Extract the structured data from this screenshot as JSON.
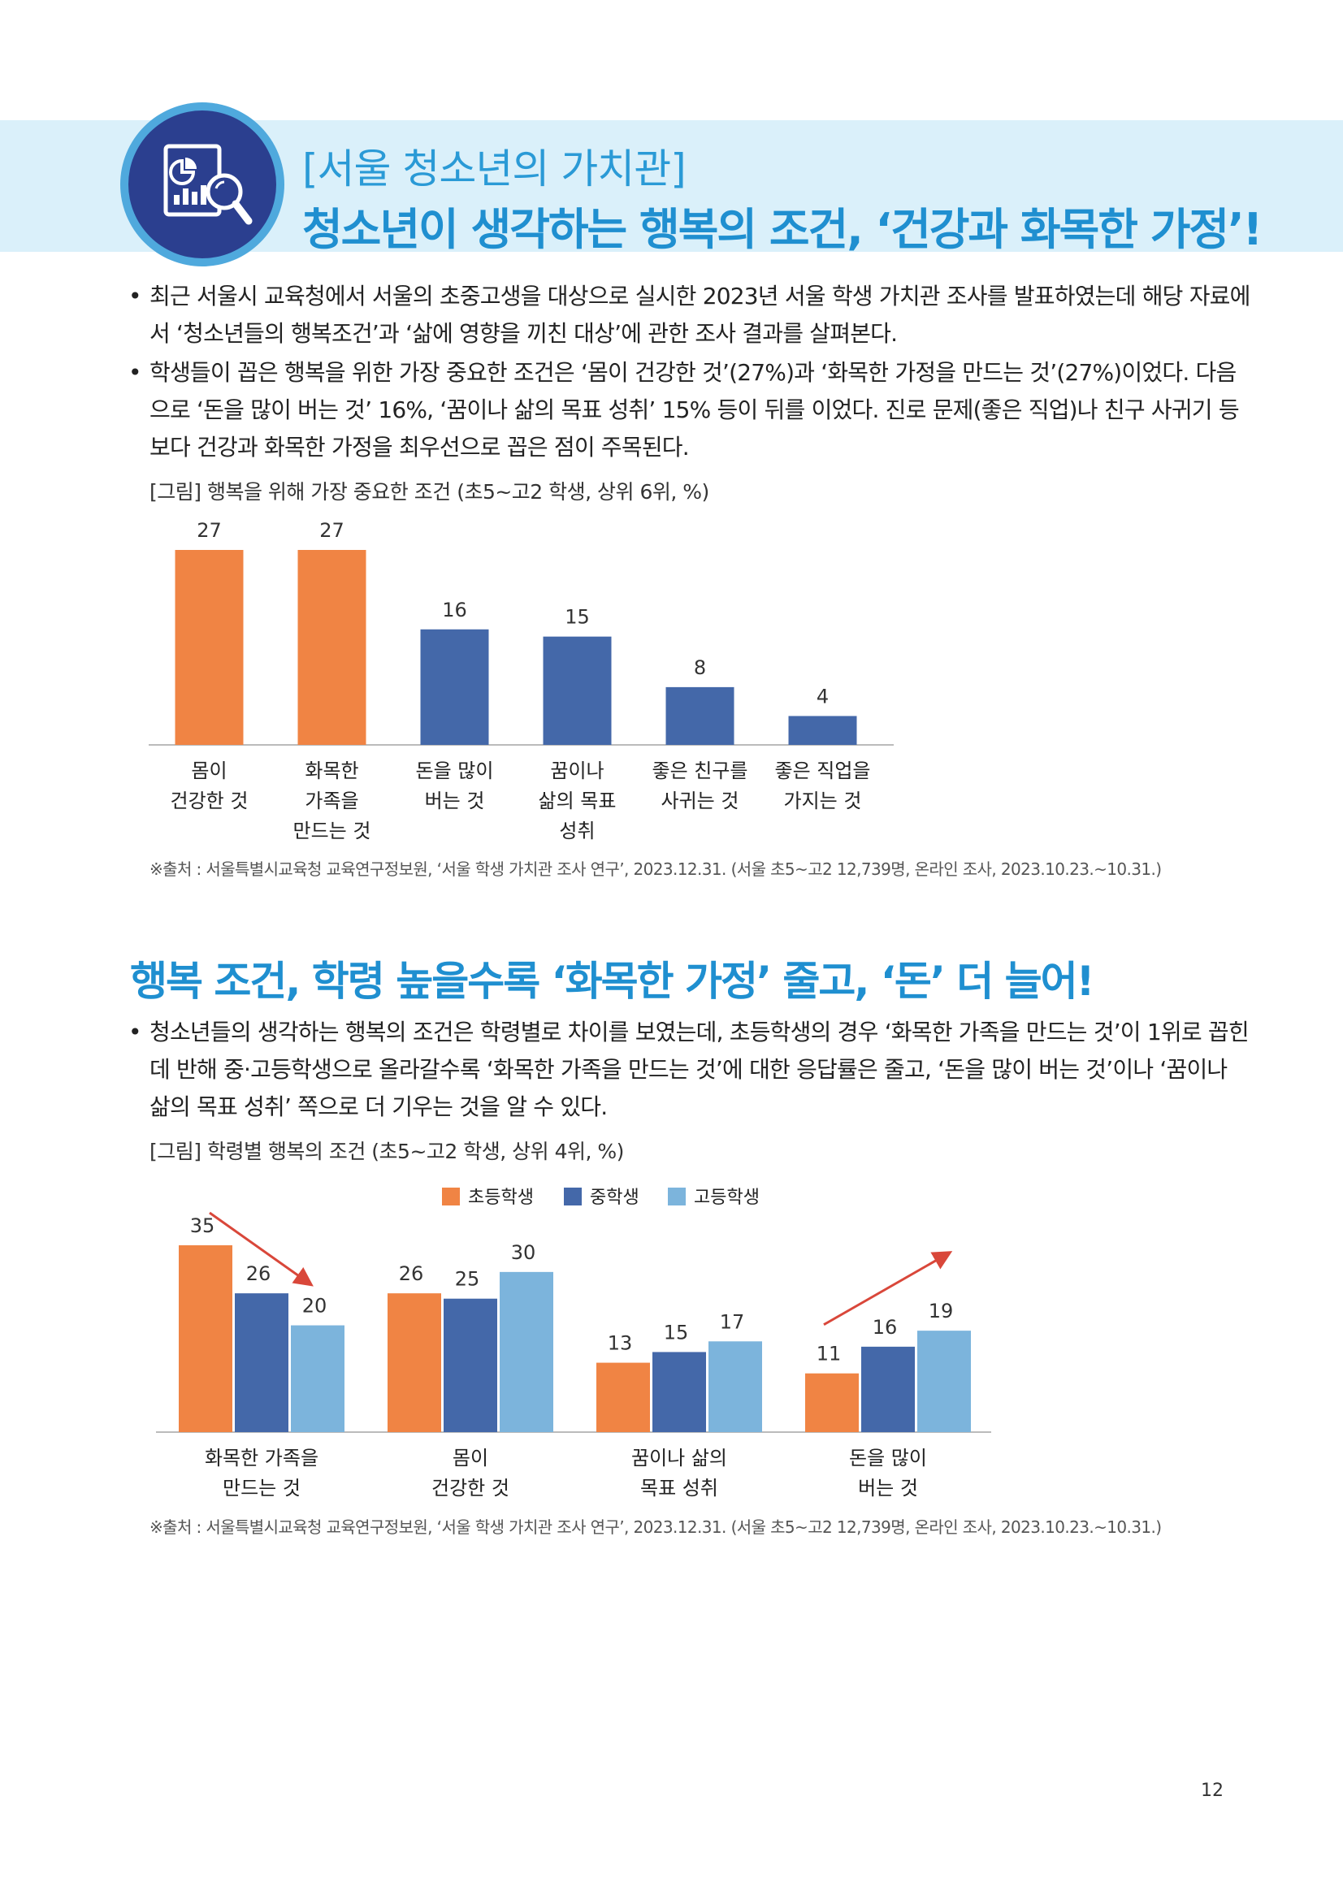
{
  "header": {
    "subtitle": "[서울 청소년의 가치관]",
    "title": "청소년이 생각하는 행복의 조건, ‘건강과 화목한 가정’!"
  },
  "intro_bullets": [
    "최근 서울시 교육청에서 서울의 초중고생을 대상으로 실시한 2023년 서울 학생 가치관 조사를 발표하였는데 해당 자료에서 ‘청소년들의 행복조건’과 ‘삶에 영향을 끼친 대상’에 관한 조사 결과를 살펴본다.",
    "학생들이 꼽은 행복을 위한 가장 중요한 조건은 ‘몸이 건강한 것’(27%)과 ‘화목한 가정을 만드는 것’(27%)이었다. 다음으로 ‘돈을 많이 버는 것’ 16%, ‘꿈이나 삶의 목표 성취’ 15% 등이 뒤를 이었다. 진로 문제(좋은 직업)나 친구 사귀기 등보다 건강과 화목한 가정을 최우선으로 꼽은 점이 주목된다."
  ],
  "figure1": {
    "caption": "[그림] 행복을 위해 가장 중요한 조건 (초5~고2 학생, 상위 6위, %)",
    "source": "※출처 : 서울특별시교육청 교육연구정보원, ‘서울 학생 가치관 조사 연구’, 2023.12.31. (서울 초5~고2 12,739명, 온라인 조사, 2023.10.23.~10.31.)"
  },
  "section2": {
    "title": "행복 조건, 학령 높을수록 ‘화목한 가정’ 줄고, ‘돈’ 더 늘어!",
    "bullets": [
      "청소년들의 생각하는 행복의 조건은 학령별로 차이를 보였는데, 초등학생의 경우 ‘화목한 가족을 만드는 것’이 1위로 꼽힌 데 반해 중·고등학생으로 올라갈수록 ‘화목한 가족을 만드는 것’에 대한 응답률은 줄고, ‘돈을 많이 버는 것’이나 ‘꿈이나 삶의 목표 성취’ 쪽으로 더 기우는 것을 알 수 있다."
    ]
  },
  "figure2": {
    "caption": "[그림] 학령별 행복의 조건 (초5~고2 학생, 상위 4위, %)",
    "source": "※출처 : 서울특별시교육청 교육연구정보원, ‘서울 학생 가치관 조사 연구’, 2023.12.31. (서울 초5~고2 12,739명, 온라인 조사, 2023.10.23.~10.31.)"
  },
  "page_number": "12",
  "chart_data": [
    {
      "type": "bar",
      "categories": [
        [
          "몸이",
          "건강한 것"
        ],
        [
          "화목한",
          "가족을",
          "만드는 것"
        ],
        [
          "돈을 많이",
          "버는 것"
        ],
        [
          "꿈이나",
          "삶의 목표",
          "성취"
        ],
        [
          "좋은 친구를",
          "사귀는 것"
        ],
        [
          "좋은 직업을",
          "가지는 것"
        ]
      ],
      "values": [
        27,
        27,
        16,
        15,
        8,
        4
      ],
      "bar_colors": [
        "#f08444",
        "#f08444",
        "#4468a9",
        "#4468a9",
        "#4468a9",
        "#4468a9"
      ],
      "ylim": [
        0,
        27
      ],
      "grid": false
    },
    {
      "type": "bar",
      "categories": [
        [
          "화목한 가족을",
          "만드는 것"
        ],
        [
          "몸이",
          "건강한 것"
        ],
        [
          "꿈이나 삶의",
          "목표 성취"
        ],
        [
          "돈을 많이",
          "버는 것"
        ]
      ],
      "series": [
        {
          "name": "초등학생",
          "values": [
            35,
            26,
            13,
            11
          ],
          "color": "#f08444"
        },
        {
          "name": "중학생",
          "values": [
            26,
            25,
            15,
            16
          ],
          "color": "#4468a9"
        },
        {
          "name": "고등학생",
          "values": [
            20,
            30,
            17,
            19
          ],
          "color": "#7cb4dc"
        }
      ],
      "ylim": [
        0,
        35
      ],
      "legend": "top-center",
      "grid": false,
      "annotations": [
        {
          "type": "arrow",
          "direction": "down",
          "category": 0
        },
        {
          "type": "arrow",
          "direction": "up",
          "category": 3
        }
      ]
    }
  ]
}
